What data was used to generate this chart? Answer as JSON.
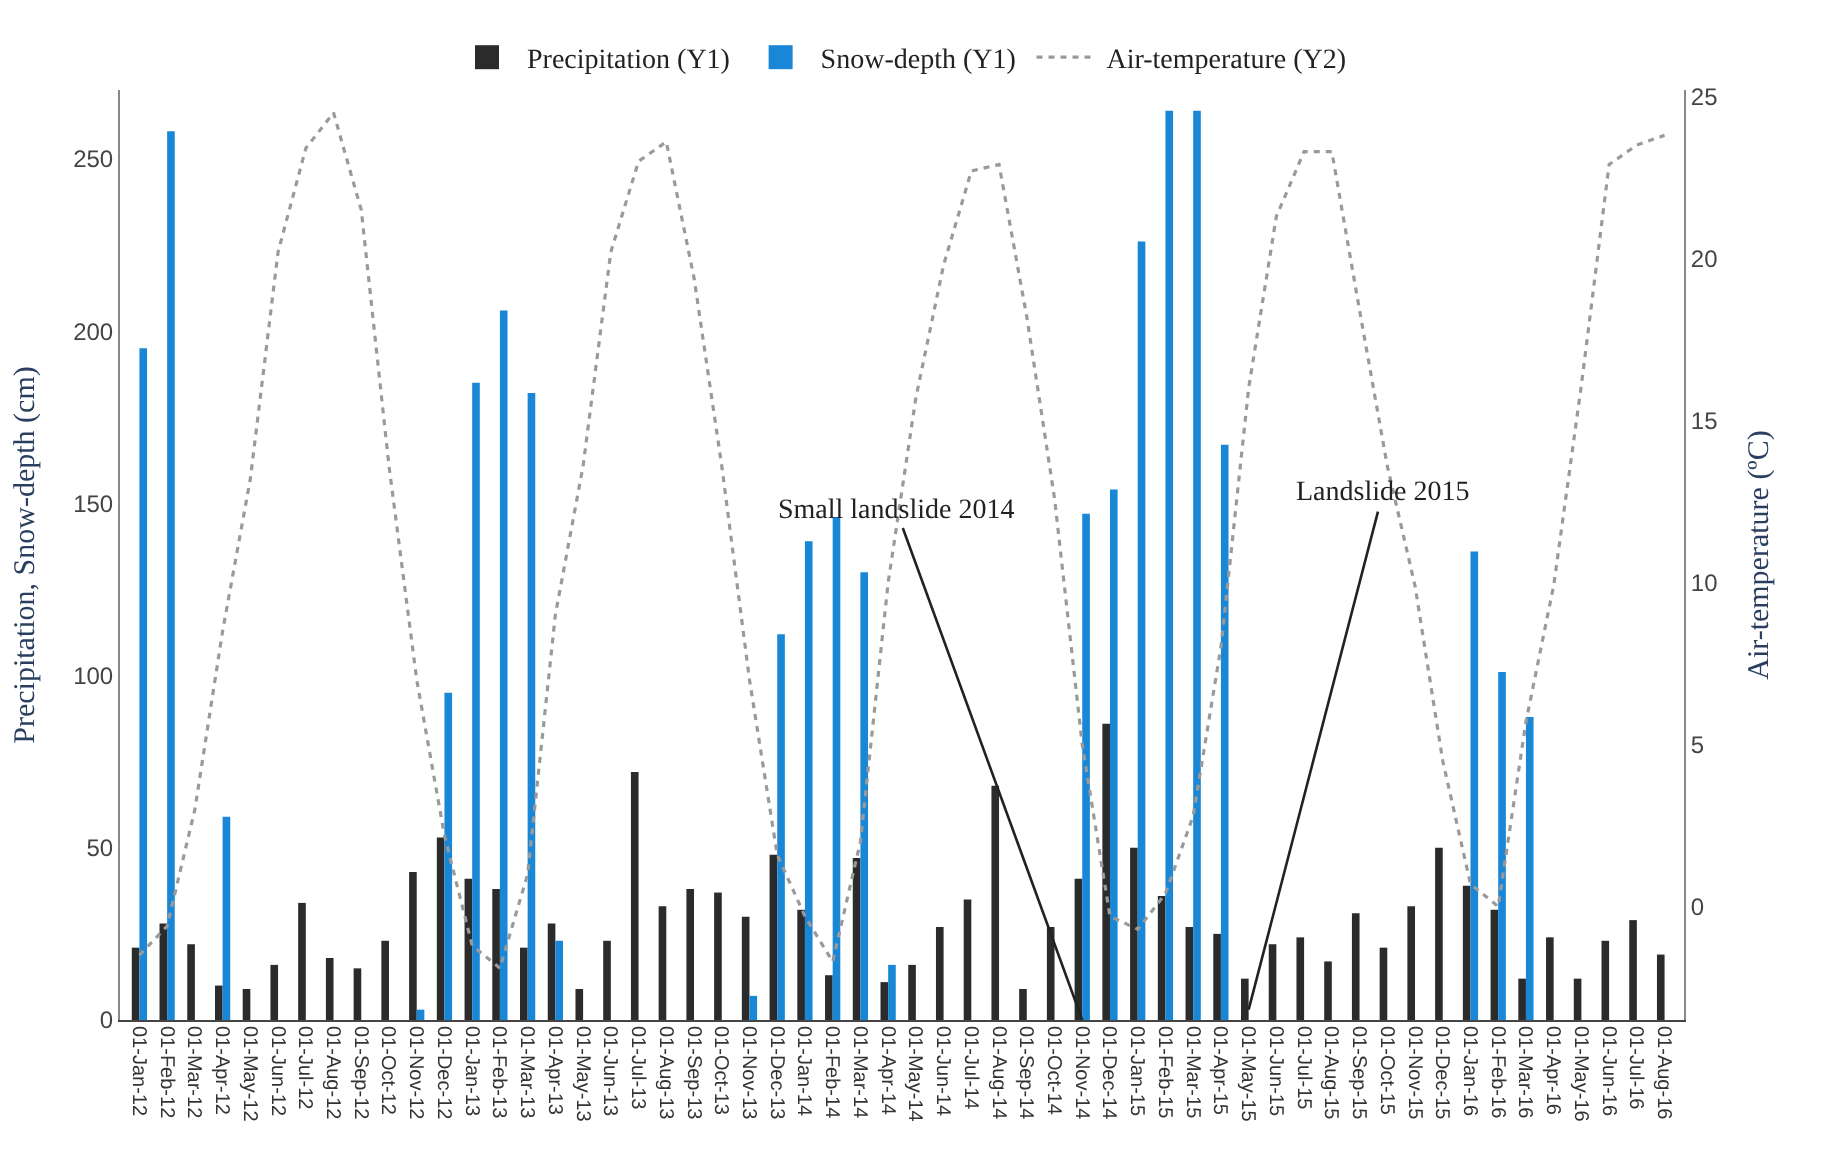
{
  "chart_data": {
    "type": "bar",
    "categories": [
      "01-Jan-12",
      "01-Feb-12",
      "01-Mar-12",
      "01-Apr-12",
      "01-May-12",
      "01-Jun-12",
      "01-Jul-12",
      "01-Aug-12",
      "01-Sep-12",
      "01-Oct-12",
      "01-Nov-12",
      "01-Dec-12",
      "01-Jan-13",
      "01-Feb-13",
      "01-Mar-13",
      "01-Apr-13",
      "01-May-13",
      "01-Jun-13",
      "01-Jul-13",
      "01-Aug-13",
      "01-Sep-13",
      "01-Oct-13",
      "01-Nov-13",
      "01-Dec-13",
      "01-Jan-14",
      "01-Feb-14",
      "01-Mar-14",
      "01-Apr-14",
      "01-May-14",
      "01-Jun-14",
      "01-Jul-14",
      "01-Aug-14",
      "01-Sep-14",
      "01-Oct-14",
      "01-Nov-14",
      "01-Dec-14",
      "01-Jan-15",
      "01-Feb-15",
      "01-Mar-15",
      "01-Apr-15",
      "01-May-15",
      "01-Jun-15",
      "01-Jul-15",
      "01-Aug-15",
      "01-Sep-15",
      "01-Oct-15",
      "01-Nov-15",
      "01-Dec-15",
      "01-Jan-16",
      "01-Feb-16",
      "01-Mar-16",
      "01-Apr-16",
      "01-May-16",
      "01-Jun-16",
      "01-Jul-16",
      "01-Aug-16"
    ],
    "series": [
      {
        "name": "Precipitation (Y1)",
        "color": "#2b2b2b",
        "values": [
          21,
          28,
          22,
          10,
          9,
          16,
          34,
          18,
          15,
          23,
          43,
          53,
          41,
          38,
          21,
          28,
          9,
          23,
          72,
          33,
          38,
          37,
          30,
          48,
          32,
          13,
          47,
          11,
          16,
          27,
          35,
          68,
          9,
          27,
          41,
          86,
          50,
          36,
          27,
          25,
          12,
          22,
          24,
          17,
          31,
          21,
          33,
          50,
          39,
          32,
          12,
          24,
          12,
          23,
          29,
          19
        ]
      },
      {
        "name": "Snow-depth (Y1)",
        "color": "#1a86d6",
        "values": [
          195,
          258,
          null,
          59,
          null,
          null,
          null,
          null,
          null,
          null,
          3,
          95,
          185,
          206,
          182,
          23,
          null,
          null,
          null,
          null,
          null,
          null,
          7,
          112,
          139,
          146,
          130,
          16,
          null,
          null,
          null,
          null,
          null,
          null,
          147,
          154,
          226,
          264,
          264,
          167,
          null,
          null,
          null,
          null,
          null,
          null,
          null,
          null,
          136,
          101,
          88,
          null,
          null,
          null,
          null,
          null
        ]
      },
      {
        "name": "Air-temperature (Y2)",
        "type": "line",
        "axis": "y2",
        "color": "#9a9a9a",
        "line_style": "dotted",
        "marker": "none",
        "values": [
          -1.5,
          -0.6,
          3,
          8.5,
          13.2,
          20.2,
          23.4,
          24.5,
          21.5,
          13.6,
          7,
          2.2,
          -1.2,
          -1.9,
          1,
          9,
          13.6,
          20.2,
          23,
          23.6,
          19.4,
          13.6,
          7,
          1.6,
          -0.3,
          -1.7,
          2,
          10,
          15.7,
          19.8,
          22.7,
          22.9,
          18.2,
          12.6,
          5,
          -0.3,
          -0.7,
          0.4,
          2.8,
          8,
          16,
          21.3,
          23.3,
          23.3,
          18.4,
          13.6,
          9.9,
          4.5,
          0.7,
          0,
          5.7,
          9.9,
          16.1,
          22.9,
          23.5,
          23.8
        ]
      }
    ],
    "ylabel": "Precipitation, Snow-depth (cm)",
    "y2label": "Air-temperature (ºC)",
    "ylim": [
      0,
      270
    ],
    "yticks": [
      0,
      50,
      100,
      150,
      200,
      250
    ],
    "y2lim": [
      -3.5,
      25.2
    ],
    "y2ticks": [
      0,
      5,
      10,
      15,
      20,
      25
    ],
    "annotations": [
      {
        "text": "Small landslide 2014",
        "x": "01-Nov-14",
        "y": 0
      },
      {
        "text": "Landslide 2015",
        "x": "01-May-15",
        "y": 3
      }
    ],
    "legend": "top",
    "grid": false
  }
}
